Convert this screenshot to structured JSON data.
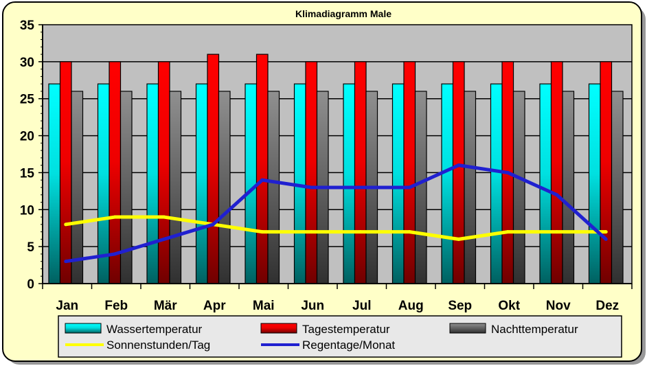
{
  "chart_data": {
    "type": "bar",
    "title": "Klimadiagramm Male",
    "categories": [
      "Jan",
      "Feb",
      "Mär",
      "Apr",
      "Mai",
      "Jun",
      "Jul",
      "Aug",
      "Sep",
      "Okt",
      "Nov",
      "Dez"
    ],
    "ylim": [
      0,
      35
    ],
    "yticks": [
      0,
      5,
      10,
      15,
      20,
      25,
      30,
      35
    ],
    "grid": true,
    "legend_position": "bottom",
    "series": [
      {
        "name": "Wassertemperatur",
        "kind": "bar",
        "color": "#00ffff",
        "values": [
          27,
          27,
          27,
          27,
          27,
          27,
          27,
          27,
          27,
          27,
          27,
          27
        ]
      },
      {
        "name": "Tagestemperatur",
        "kind": "bar",
        "color": "#ff0000",
        "values": [
          30,
          30,
          30,
          31,
          31,
          30,
          30,
          30,
          30,
          30,
          30,
          30
        ]
      },
      {
        "name": "Nachttemperatur",
        "kind": "bar",
        "color": "#808080",
        "values": [
          26,
          26,
          26,
          26,
          26,
          26,
          26,
          26,
          26,
          26,
          26,
          26
        ]
      },
      {
        "name": "Sonnenstunden/Tag",
        "kind": "line",
        "color": "#ffff00",
        "values": [
          8,
          9,
          9,
          8,
          7,
          7,
          7,
          7,
          6,
          7,
          7,
          7
        ]
      },
      {
        "name": "Regentage/Monat",
        "kind": "line",
        "color": "#2020d0",
        "values": [
          3,
          4,
          6,
          8,
          14,
          13,
          13,
          13,
          16,
          15,
          12,
          6
        ]
      }
    ]
  }
}
